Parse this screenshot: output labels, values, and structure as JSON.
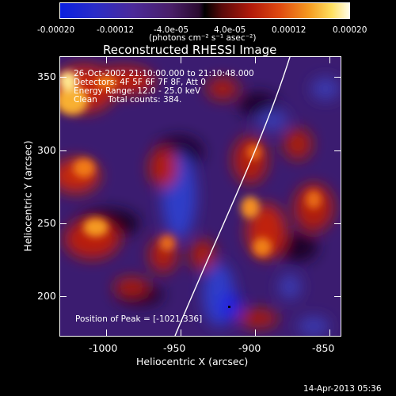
{
  "colorbar": {
    "ticks": [
      "-0.00020",
      "-0.00012",
      "-4.0e-05",
      "4.0e-05",
      "0.00012",
      "0.00020"
    ],
    "unit_label": "(photons cm⁻² s⁻¹ asec⁻²)"
  },
  "plot": {
    "title": "Reconstructed RHESSI Image",
    "info_lines": [
      "26-Oct-2002 21:10:00.000 to 21:10:48.000",
      "Detectors: 4F 5F 6F 7F 8F, Att 0",
      "Energy Range: 12.0 - 25.0 keV",
      "Clean    Total counts: 384."
    ],
    "peak_label": "Position of Peak = [-1021,336]",
    "xlabel": "Heliocentric X (arcsec)",
    "ylabel": "Heliocentric Y (arcsec)",
    "xticks": [
      "-1000",
      "-950",
      "-900",
      "-850"
    ],
    "yticks": [
      "350",
      "300",
      "250",
      "200"
    ]
  },
  "footer": {
    "timestamp": "14-Apr-2013 05:36"
  }
}
